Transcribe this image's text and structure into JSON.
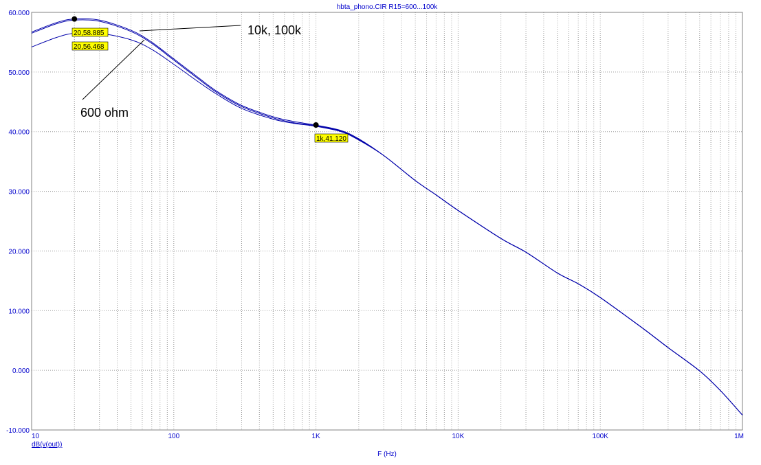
{
  "chart_data": {
    "type": "line",
    "title": "hbta_phono.CIR R15=600...100k",
    "xlabel": "F (Hz)",
    "ylabel": "dB(v(out))",
    "xscale": "log",
    "xlim": [
      10,
      1000000
    ],
    "ylim": [
      -10,
      60
    ],
    "grid": true,
    "x_tick_labels": [
      "10",
      "100",
      "1K",
      "10K",
      "100K",
      "1M"
    ],
    "y_tick_labels": [
      "-10.000",
      "0.000",
      "10.000",
      "20.000",
      "30.000",
      "40.000",
      "50.000",
      "60.000"
    ],
    "series": [
      {
        "x": [
          10,
          15,
          20,
          30,
          50,
          70,
          100,
          150,
          200,
          300,
          500,
          700,
          1000,
          1500,
          2000,
          3000,
          5000,
          7000,
          10000,
          20000,
          30000,
          50000,
          70000,
          100000,
          200000,
          300000,
          500000,
          700000,
          1000000
        ],
        "y": [
          56.7,
          58.3,
          58.9,
          58.7,
          57.0,
          55.0,
          52.2,
          49.0,
          46.8,
          44.4,
          42.5,
          41.7,
          41.1,
          40.2,
          38.8,
          36.0,
          31.8,
          29.4,
          26.8,
          22.1,
          19.8,
          16.3,
          14.5,
          12.2,
          7.0,
          3.8,
          -0.1,
          -3.4,
          -7.5
        ]
      },
      {
        "x": [
          10,
          15,
          20,
          30,
          50,
          70,
          100,
          150,
          200,
          300,
          500,
          700,
          1000,
          1500,
          2000,
          3000,
          5000,
          7000,
          10000,
          20000,
          30000,
          50000,
          70000,
          100000,
          200000,
          300000,
          500000,
          700000,
          1000000
        ],
        "y": [
          56.5,
          58.1,
          58.7,
          58.5,
          56.8,
          54.8,
          52.0,
          48.8,
          46.6,
          44.2,
          42.3,
          41.5,
          41.0,
          40.1,
          38.7,
          36.0,
          31.8,
          29.4,
          26.8,
          22.1,
          19.8,
          16.3,
          14.5,
          12.2,
          7.0,
          3.8,
          -0.1,
          -3.4,
          -7.5
        ]
      },
      {
        "x": [
          10,
          15,
          20,
          30,
          50,
          70,
          100,
          150,
          200,
          300,
          500,
          700,
          1000,
          1500,
          2000,
          3000,
          5000,
          7000,
          10000,
          20000,
          30000,
          50000,
          70000,
          100000,
          200000,
          300000,
          500000,
          700000,
          1000000
        ],
        "y": [
          54.2,
          55.8,
          56.5,
          56.5,
          55.4,
          53.8,
          51.3,
          48.3,
          46.3,
          43.9,
          42.1,
          41.4,
          40.9,
          40.0,
          38.6,
          36.0,
          31.8,
          29.4,
          26.8,
          22.1,
          19.8,
          16.3,
          14.5,
          12.2,
          7.0,
          3.8,
          -0.1,
          -3.4,
          -7.5
        ]
      }
    ],
    "markers": [
      {
        "x": 20,
        "y": 58.885,
        "label": "20,58.885"
      },
      {
        "x": 1000,
        "y": 41.12,
        "label": "1k,41.120"
      }
    ],
    "marker_value_labels": [
      "20,56.468"
    ],
    "annotations": [
      "10k, 100k",
      "600 ohm"
    ],
    "colors": {
      "line": "#0000aa",
      "grid": "#9a9a9a",
      "label_bg": "#ffff00",
      "text": "#0000cc"
    }
  }
}
